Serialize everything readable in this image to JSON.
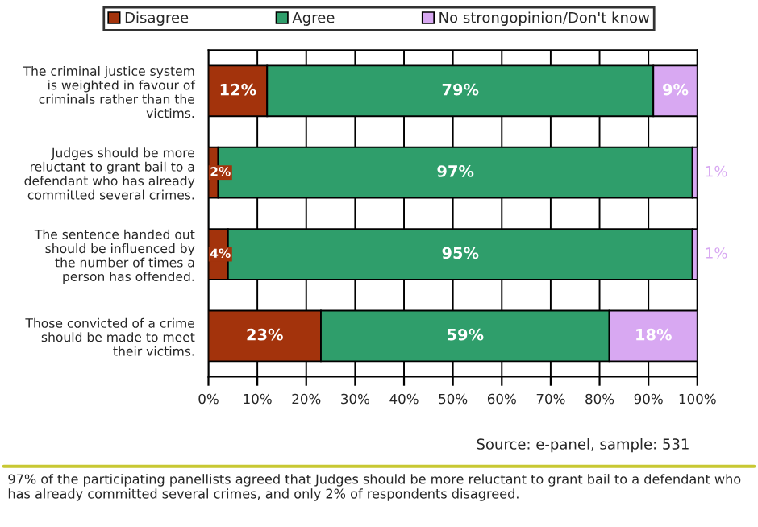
{
  "chart_data": {
    "type": "bar",
    "orientation": "horizontal",
    "stacked": true,
    "categories": [
      "The criminal justice system\nis weighted in favour of\ncriminals rather than the\nvictims.",
      "Judges should be more\nreluctant to grant bail to a\ndefendant who has already\ncommitted several crimes.",
      "The sentence handed out\nshould be influenced by\nthe number of times a\nperson has offended.",
      "Those convicted of a crime\nshould be made to meet\ntheir victims."
    ],
    "series": [
      {
        "name": "Disagree",
        "color": "#a3330c",
        "values": [
          12,
          2,
          4,
          23
        ],
        "value_labels": [
          "12%",
          "2%",
          "4%",
          "23%"
        ]
      },
      {
        "name": "Agree",
        "color": "#2f9e6b",
        "values": [
          79,
          97,
          95,
          59
        ],
        "value_labels": [
          "79%",
          "97%",
          "95%",
          "59%"
        ]
      },
      {
        "name": "No strongopinion/Don't know",
        "color": "#d8a8f2",
        "values": [
          9,
          1,
          1,
          18
        ],
        "value_labels": [
          "9%",
          "1%",
          "1%",
          "18%"
        ]
      }
    ],
    "xlim": [
      0,
      100
    ],
    "xticks": [
      {
        "value": 0,
        "label": "0%"
      },
      {
        "value": 10,
        "label": "10%"
      },
      {
        "value": 20,
        "label": "20%"
      },
      {
        "value": 30,
        "label": "30%"
      },
      {
        "value": 40,
        "label": "40%"
      },
      {
        "value": 50,
        "label": "50%"
      },
      {
        "value": 60,
        "label": "60%"
      },
      {
        "value": 70,
        "label": "70%"
      },
      {
        "value": 80,
        "label": "80%"
      },
      {
        "value": 90,
        "label": "90%"
      },
      {
        "value": 100,
        "label": "100%"
      }
    ],
    "grid": "x",
    "legend": "top",
    "annotations": [
      "Source: e-panel, sample: 531",
      "97% of the participating panellists agreed that Judges should be more reluctant to grant bail to a defendant who has already committed several crimes, and only 2% of respondents disagreed."
    ]
  }
}
